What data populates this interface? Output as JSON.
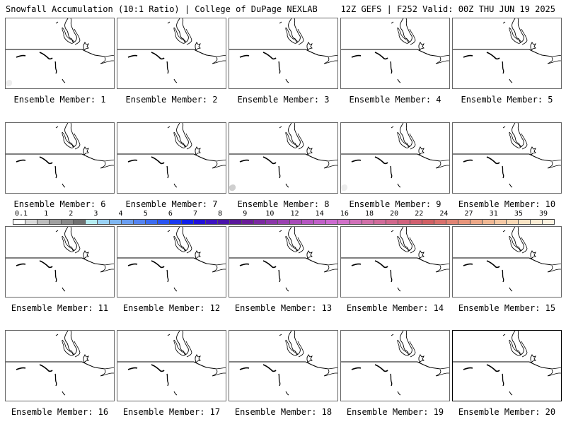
{
  "header": {
    "title": "Snowfall Accumulation (10:1 Ratio) | College of DuPage NEXLAB",
    "run_info": "12Z GEFS | F252 Valid: 00Z THU JUN 19 2025"
  },
  "panels": [
    {
      "label": "Ensemble Member: 1",
      "snow_blobs": [
        {
          "at": "lower-left-edge",
          "amount_in": 0.1
        }
      ]
    },
    {
      "label": "Ensemble Member: 2",
      "snow_blobs": []
    },
    {
      "label": "Ensemble Member: 3",
      "snow_blobs": []
    },
    {
      "label": "Ensemble Member: 4",
      "snow_blobs": []
    },
    {
      "label": "Ensemble Member: 5",
      "snow_blobs": []
    },
    {
      "label": "Ensemble Member: 6",
      "snow_blobs": []
    },
    {
      "label": "Ensemble Member: 7",
      "snow_blobs": []
    },
    {
      "label": "Ensemble Member: 8",
      "snow_blobs": [
        {
          "at": "lower-left-edge",
          "amount_in": 1
        }
      ]
    },
    {
      "label": "Ensemble Member: 9",
      "snow_blobs": [
        {
          "at": "lower-left-edge",
          "amount_in": 0.1
        }
      ]
    },
    {
      "label": "Ensemble Member: 10",
      "snow_blobs": []
    },
    {
      "label": "Ensemble Member: 11",
      "snow_blobs": []
    },
    {
      "label": "Ensemble Member: 12",
      "snow_blobs": []
    },
    {
      "label": "Ensemble Member: 13",
      "snow_blobs": []
    },
    {
      "label": "Ensemble Member: 14",
      "snow_blobs": []
    },
    {
      "label": "Ensemble Member: 15",
      "snow_blobs": []
    },
    {
      "label": "Ensemble Member: 16",
      "snow_blobs": []
    },
    {
      "label": "Ensemble Member: 17",
      "snow_blobs": []
    },
    {
      "label": "Ensemble Member: 18",
      "snow_blobs": []
    },
    {
      "label": "Ensemble Member: 19",
      "snow_blobs": []
    },
    {
      "label": "Ensemble Member: 20",
      "snow_blobs": [],
      "selected": true
    }
  ],
  "colorbar": {
    "labels": [
      "0.1",
      "1",
      "2",
      "3",
      "4",
      "5",
      "6",
      "7",
      "8",
      "9",
      "10",
      "12",
      "14",
      "16",
      "18",
      "20",
      "22",
      "24",
      "27",
      "31",
      "35",
      "39"
    ],
    "colors": [
      "#ffffff",
      "#d9d9d9",
      "#bdbdbd",
      "#a0a0a0",
      "#8a8a8a",
      "#707070",
      "#b4ecf0",
      "#9ad2f5",
      "#7fb6f0",
      "#6a9ef0",
      "#5584f0",
      "#3c6cf0",
      "#2a54f0",
      "#1a3af0",
      "#1020e8",
      "#2010d8",
      "#3c12c0",
      "#4a14a8",
      "#5a189a",
      "#6a1e98",
      "#7a2aa0",
      "#8a36a8",
      "#9a42b0",
      "#a84cb8",
      "#b456c0",
      "#c060c8",
      "#cc6ad0",
      "#d070c8",
      "#d070b8",
      "#d070a8",
      "#d06c9a",
      "#d0688c",
      "#d0647e",
      "#d06070",
      "#d06064",
      "#d8706c",
      "#e08474",
      "#e8967c",
      "#eca888",
      "#f0b894",
      "#f4c8a4",
      "#f8d8b4",
      "#fae4c4",
      "#fcecd4",
      "#fef2e0"
    ]
  }
}
